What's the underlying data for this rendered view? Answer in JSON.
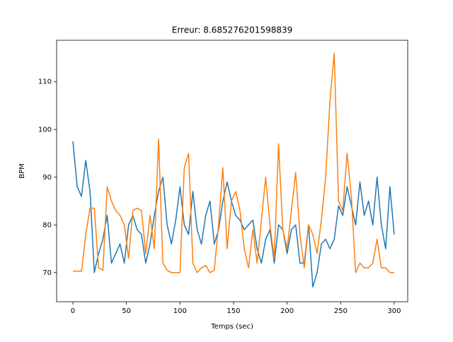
{
  "chart_data": {
    "type": "line",
    "title": "Erreur: 8.685276201598839",
    "x_label": "Temps (sec)",
    "y_label": "BPM",
    "x": [
      0,
      4,
      8,
      12,
      16,
      20,
      24,
      28,
      32,
      36,
      40,
      44,
      48,
      52,
      56,
      60,
      64,
      68,
      72,
      76,
      80,
      84,
      88,
      92,
      96,
      100,
      104,
      108,
      112,
      116,
      120,
      124,
      128,
      132,
      136,
      140,
      144,
      148,
      152,
      156,
      160,
      164,
      168,
      172,
      176,
      180,
      184,
      188,
      192,
      196,
      200,
      204,
      208,
      212,
      216,
      220,
      224,
      228,
      232,
      236,
      240,
      244,
      248,
      252,
      256,
      260,
      264,
      268,
      272,
      276,
      280,
      284,
      288,
      292,
      296,
      300
    ],
    "series": [
      {
        "color": "#1f77b4",
        "values": [
          97.5,
          88,
          86,
          93.5,
          87,
          70,
          74,
          77,
          82,
          72,
          74,
          76,
          72,
          80,
          82,
          79,
          78,
          72,
          76,
          82,
          87,
          90,
          80,
          76,
          81,
          88,
          80,
          78,
          87,
          79,
          76,
          82,
          85,
          76,
          79,
          85,
          89,
          85,
          82,
          81,
          79,
          80,
          81,
          75,
          72,
          77,
          79,
          72,
          80,
          79,
          74,
          79,
          80,
          72,
          72,
          80,
          67,
          70,
          76,
          77,
          75,
          77,
          84,
          82,
          88,
          84,
          80,
          89,
          82,
          85,
          80,
          90,
          80,
          75,
          88,
          78
        ]
      },
      {
        "color": "#ff7f0e",
        "values": [
          70.3,
          70.3,
          70.3,
          78,
          83.5,
          83.5,
          71,
          70.5,
          88,
          85,
          83,
          82,
          80,
          73,
          83,
          83.5,
          83,
          74,
          82,
          75,
          98,
          72,
          70.5,
          70,
          70,
          70,
          92,
          95,
          72,
          70,
          71,
          71.5,
          70,
          70.5,
          80,
          92,
          75,
          85,
          87,
          83,
          75,
          71,
          79,
          72,
          81,
          90,
          80,
          73,
          97,
          79,
          75,
          83,
          91,
          78,
          71,
          80,
          78,
          74,
          81,
          90,
          106,
          116,
          85,
          83,
          95,
          86,
          70,
          72,
          71,
          71,
          72,
          77,
          71,
          71,
          70,
          70
        ]
      }
    ],
    "xlim": [
      -15.2,
      312.6
    ],
    "ylim": [
      63.9,
      118.7
    ],
    "xticks": [
      0,
      50,
      100,
      150,
      200,
      250,
      300
    ],
    "yticks": [
      70,
      80,
      90,
      100,
      110
    ],
    "grid": false
  }
}
